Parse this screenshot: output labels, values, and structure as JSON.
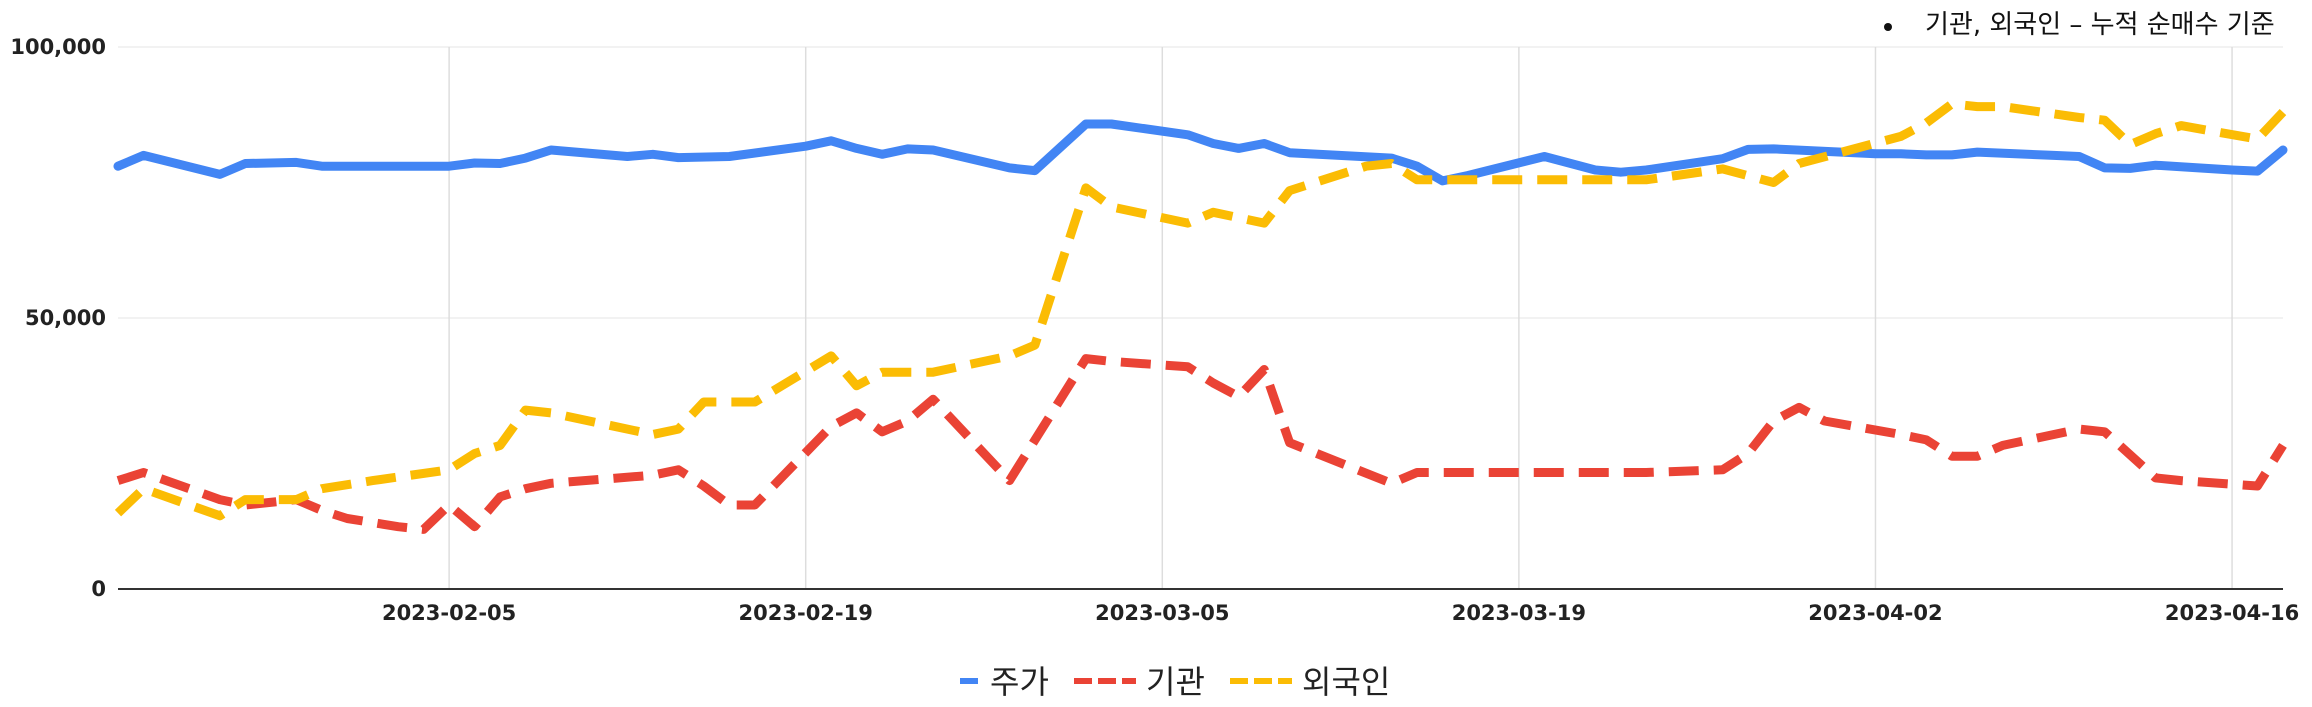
{
  "chart_data": {
    "type": "line",
    "title": "",
    "annotation": "기관, 외국인 – 누적 순매수 기준",
    "xlabel": "",
    "ylabel": "",
    "ylim": [
      0,
      100000
    ],
    "xlim": [
      "2023-01-23",
      "2023-04-18"
    ],
    "grid": true,
    "legend_position": "bottom-center",
    "y_tick_labels": [
      "0",
      "50,000",
      "100,000"
    ],
    "y_tick_values": [
      0,
      50000,
      100000
    ],
    "x_tick_labels": [
      "2023-02-05",
      "2023-02-19",
      "2023-03-05",
      "2023-03-19",
      "2023-04-02",
      "2023-04-16"
    ],
    "x_tick_values": [
      "2023-02-05",
      "2023-02-19",
      "2023-03-05",
      "2023-03-19",
      "2023-04-02",
      "2023-04-16"
    ],
    "series": [
      {
        "name": "주가",
        "color": "#4285F4",
        "dash": "solid",
        "points": [
          [
            "2023-01-23",
            78000
          ],
          [
            "2023-01-24",
            80000
          ],
          [
            "2023-01-27",
            76500
          ],
          [
            "2023-01-28",
            78500
          ],
          [
            "2023-01-30",
            78700
          ],
          [
            "2023-01-31",
            78000
          ],
          [
            "2023-02-02",
            78000
          ],
          [
            "2023-02-05",
            78000
          ],
          [
            "2023-02-06",
            78600
          ],
          [
            "2023-02-07",
            78500
          ],
          [
            "2023-02-08",
            79500
          ],
          [
            "2023-02-09",
            81000
          ],
          [
            "2023-02-12",
            79800
          ],
          [
            "2023-02-13",
            80200
          ],
          [
            "2023-02-14",
            79600
          ],
          [
            "2023-02-16",
            79800
          ],
          [
            "2023-02-19",
            81700
          ],
          [
            "2023-02-20",
            82700
          ],
          [
            "2023-02-21",
            81300
          ],
          [
            "2023-02-22",
            80200
          ],
          [
            "2023-02-23",
            81200
          ],
          [
            "2023-02-24",
            81000
          ],
          [
            "2023-02-27",
            77700
          ],
          [
            "2023-02-28",
            77200
          ],
          [
            "2023-03-02",
            85800
          ],
          [
            "2023-03-03",
            85800
          ],
          [
            "2023-03-06",
            83800
          ],
          [
            "2023-03-07",
            82200
          ],
          [
            "2023-03-08",
            81300
          ],
          [
            "2023-03-09",
            82200
          ],
          [
            "2023-03-10",
            80500
          ],
          [
            "2023-03-14",
            79500
          ],
          [
            "2023-03-15",
            78000
          ],
          [
            "2023-03-16",
            75300
          ],
          [
            "2023-03-17",
            76300
          ],
          [
            "2023-03-20",
            79800
          ],
          [
            "2023-03-22",
            77300
          ],
          [
            "2023-03-23",
            76900
          ],
          [
            "2023-03-24",
            77300
          ],
          [
            "2023-03-27",
            79400
          ],
          [
            "2023-03-28",
            81100
          ],
          [
            "2023-03-29",
            81200
          ],
          [
            "2023-04-02",
            80300
          ],
          [
            "2023-04-03",
            80300
          ],
          [
            "2023-04-04",
            80100
          ],
          [
            "2023-04-05",
            80100
          ],
          [
            "2023-04-06",
            80600
          ],
          [
            "2023-04-09",
            80000
          ],
          [
            "2023-04-10",
            79800
          ],
          [
            "2023-04-11",
            77700
          ],
          [
            "2023-04-12",
            77600
          ],
          [
            "2023-04-13",
            78200
          ],
          [
            "2023-04-16",
            77300
          ],
          [
            "2023-04-17",
            77100
          ],
          [
            "2023-04-18",
            81000
          ]
        ]
      },
      {
        "name": "기관",
        "color": "#EA4335",
        "dash": "dashed",
        "points": [
          [
            "2023-01-23",
            20000
          ],
          [
            "2023-01-24",
            21500
          ],
          [
            "2023-01-27",
            16500
          ],
          [
            "2023-01-28",
            15500
          ],
          [
            "2023-01-30",
            16500
          ],
          [
            "2023-01-31",
            14500
          ],
          [
            "2023-02-01",
            13000
          ],
          [
            "2023-02-03",
            11500
          ],
          [
            "2023-02-04",
            11000
          ],
          [
            "2023-02-05",
            15500
          ],
          [
            "2023-02-06",
            11500
          ],
          [
            "2023-02-07",
            17000
          ],
          [
            "2023-02-08",
            18500
          ],
          [
            "2023-02-09",
            19500
          ],
          [
            "2023-02-13",
            21000
          ],
          [
            "2023-02-14",
            22000
          ],
          [
            "2023-02-15",
            19000
          ],
          [
            "2023-02-16",
            15500
          ],
          [
            "2023-02-17",
            15500
          ],
          [
            "2023-02-20",
            30000
          ],
          [
            "2023-02-21",
            32500
          ],
          [
            "2023-02-22",
            29000
          ],
          [
            "2023-02-23",
            31000
          ],
          [
            "2023-02-24",
            35000
          ],
          [
            "2023-02-27",
            20000
          ],
          [
            "2023-03-02",
            42500
          ],
          [
            "2023-03-03",
            42000
          ],
          [
            "2023-03-06",
            41000
          ],
          [
            "2023-03-07",
            38000
          ],
          [
            "2023-03-08",
            35500
          ],
          [
            "2023-03-09",
            40500
          ],
          [
            "2023-03-10",
            27000
          ],
          [
            "2023-03-14",
            19500
          ],
          [
            "2023-03-15",
            21500
          ],
          [
            "2023-03-16",
            21500
          ],
          [
            "2023-03-20",
            21500
          ],
          [
            "2023-03-22",
            21500
          ],
          [
            "2023-03-23",
            21500
          ],
          [
            "2023-03-24",
            21500
          ],
          [
            "2023-03-27",
            22000
          ],
          [
            "2023-03-28",
            25000
          ],
          [
            "2023-03-29",
            31000
          ],
          [
            "2023-03-30",
            33500
          ],
          [
            "2023-03-31",
            31000
          ],
          [
            "2023-04-03",
            28500
          ],
          [
            "2023-04-04",
            27500
          ],
          [
            "2023-04-05",
            24500
          ],
          [
            "2023-04-06",
            24500
          ],
          [
            "2023-04-07",
            26500
          ],
          [
            "2023-04-10",
            29500
          ],
          [
            "2023-04-11",
            29000
          ],
          [
            "2023-04-13",
            20500
          ],
          [
            "2023-04-14",
            20000
          ],
          [
            "2023-04-17",
            19000
          ],
          [
            "2023-04-18",
            26500
          ]
        ]
      },
      {
        "name": "외국인",
        "color": "#FBBC04",
        "dash": "dashed",
        "points": [
          [
            "2023-01-23",
            14000
          ],
          [
            "2023-01-24",
            18500
          ],
          [
            "2023-01-27",
            13500
          ],
          [
            "2023-01-28",
            16500
          ],
          [
            "2023-01-30",
            16500
          ],
          [
            "2023-01-31",
            18500
          ],
          [
            "2023-02-02",
            20000
          ],
          [
            "2023-02-05",
            22000
          ],
          [
            "2023-02-06",
            25000
          ],
          [
            "2023-02-07",
            26500
          ],
          [
            "2023-02-08",
            33000
          ],
          [
            "2023-02-09",
            32500
          ],
          [
            "2023-02-13",
            28500
          ],
          [
            "2023-02-14",
            29500
          ],
          [
            "2023-02-15",
            34500
          ],
          [
            "2023-02-16",
            34500
          ],
          [
            "2023-02-17",
            34500
          ],
          [
            "2023-02-20",
            43000
          ],
          [
            "2023-02-21",
            37500
          ],
          [
            "2023-02-22",
            40000
          ],
          [
            "2023-02-23",
            40000
          ],
          [
            "2023-02-24",
            40000
          ],
          [
            "2023-02-27",
            43000
          ],
          [
            "2023-02-28",
            45000
          ],
          [
            "2023-03-02",
            74000
          ],
          [
            "2023-03-03",
            70500
          ],
          [
            "2023-03-06",
            67500
          ],
          [
            "2023-03-07",
            69500
          ],
          [
            "2023-03-08",
            68500
          ],
          [
            "2023-03-09",
            67500
          ],
          [
            "2023-03-10",
            73500
          ],
          [
            "2023-03-13",
            78000
          ],
          [
            "2023-03-14",
            78500
          ],
          [
            "2023-03-15",
            75500
          ],
          [
            "2023-03-16",
            75500
          ],
          [
            "2023-03-20",
            75500
          ],
          [
            "2023-03-22",
            75500
          ],
          [
            "2023-03-23",
            75500
          ],
          [
            "2023-03-24",
            75500
          ],
          [
            "2023-03-27",
            77500
          ],
          [
            "2023-03-29",
            75000
          ],
          [
            "2023-03-30",
            78500
          ],
          [
            "2023-04-03",
            83500
          ],
          [
            "2023-04-04",
            86000
          ],
          [
            "2023-04-05",
            89500
          ],
          [
            "2023-04-06",
            89000
          ],
          [
            "2023-04-07",
            89000
          ],
          [
            "2023-04-10",
            87000
          ],
          [
            "2023-04-11",
            86500
          ],
          [
            "2023-04-12",
            82000
          ],
          [
            "2023-04-13",
            84000
          ],
          [
            "2023-04-14",
            85500
          ],
          [
            "2023-04-17",
            83000
          ],
          [
            "2023-04-18",
            88000
          ]
        ]
      }
    ]
  }
}
